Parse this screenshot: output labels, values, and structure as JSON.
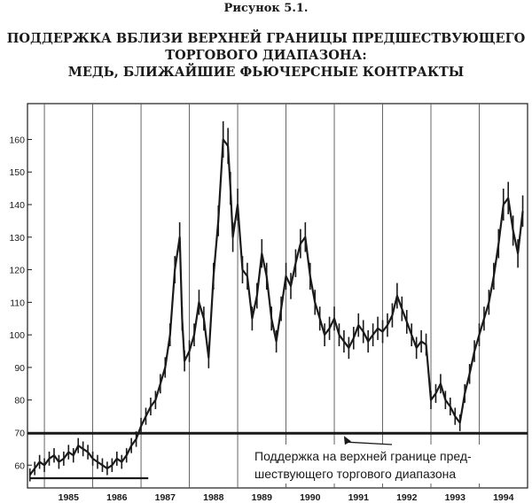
{
  "figure_label": "Рисунок 5.1.",
  "title_lines": [
    "ПОДДЕРЖКА ВБЛИЗИ ВЕРХНЕЙ ГРАНИЦЫ ПРЕДШЕСТВУЮЩЕГО",
    "ТОРГОВОГО ДИАПАЗОНА:",
    "МЕДЬ, БЛИЖАЙШИЕ ФЬЮЧЕРСНЫЕ КОНТРАКТЫ"
  ],
  "colors": {
    "ink": "#1a1a1a",
    "grid": "#555555",
    "background": "#ffffff"
  },
  "chart_data": {
    "type": "line",
    "xlabel": "",
    "ylabel": "",
    "x_range": [
      1984.65,
      1995.0
    ],
    "ylim": [
      53,
      171
    ],
    "y_ticks": [
      60,
      70,
      80,
      90,
      100,
      110,
      120,
      130,
      140,
      150,
      160
    ],
    "x_ticks": [
      {
        "label": "1985",
        "at": 1985.5
      },
      {
        "label": "1986",
        "at": 1986.5
      },
      {
        "label": "1987",
        "at": 1987.5
      },
      {
        "label": "1988",
        "at": 1988.5
      },
      {
        "label": "1989",
        "at": 1989.5
      },
      {
        "label": "1990",
        "at": 1990.5
      },
      {
        "label": "1991",
        "at": 1991.5
      },
      {
        "label": "1992",
        "at": 1992.5
      },
      {
        "label": "1993",
        "at": 1993.5
      },
      {
        "label": "1994",
        "at": 1994.5
      }
    ],
    "grid": "vertical-year-lines",
    "series": [
      {
        "x": [
          1984.7,
          1984.8,
          1984.9,
          1985.0,
          1985.1,
          1985.2,
          1985.3,
          1985.4,
          1985.5,
          1985.6,
          1985.7,
          1985.8,
          1985.9,
          1986.0,
          1986.1,
          1986.2,
          1986.3,
          1986.4,
          1986.5,
          1986.6,
          1986.7,
          1986.8,
          1986.9,
          1987.0,
          1987.1,
          1987.2,
          1987.3,
          1987.4,
          1987.5,
          1987.6,
          1987.7,
          1987.8,
          1987.85,
          1987.9,
          1988.0,
          1988.1,
          1988.2,
          1988.3,
          1988.4,
          1988.5,
          1988.6,
          1988.7,
          1988.8,
          1988.85,
          1988.9,
          1989.0,
          1989.1,
          1989.2,
          1989.3,
          1989.4,
          1989.5,
          1989.6,
          1989.7,
          1989.8,
          1989.9,
          1990.0,
          1990.1,
          1990.2,
          1990.3,
          1990.4,
          1990.5,
          1990.6,
          1990.7,
          1990.8,
          1990.9,
          1991.0,
          1991.1,
          1991.2,
          1991.3,
          1991.4,
          1991.5,
          1991.6,
          1991.7,
          1991.8,
          1991.9,
          1992.0,
          1992.1,
          1992.2,
          1992.3,
          1992.4,
          1992.5,
          1992.6,
          1992.7,
          1992.8,
          1992.9,
          1993.0,
          1993.1,
          1993.2,
          1993.3,
          1993.4,
          1993.5,
          1993.6,
          1993.7,
          1993.8,
          1993.9,
          1994.0,
          1994.1,
          1994.2,
          1994.3,
          1994.4,
          1994.5,
          1994.6,
          1994.7,
          1994.8,
          1994.9
        ],
        "values": [
          57,
          59,
          61,
          60,
          62,
          63,
          61,
          62,
          64,
          63,
          66,
          65,
          64,
          62,
          61,
          60,
          59,
          60,
          62,
          61,
          63,
          66,
          68,
          72,
          75,
          78,
          80,
          85,
          90,
          100,
          120,
          130,
          105,
          92,
          95,
          100,
          110,
          105,
          93,
          118,
          135,
          160,
          158,
          145,
          130,
          140,
          120,
          118,
          105,
          112,
          125,
          118,
          105,
          98,
          108,
          118,
          115,
          122,
          128,
          130,
          118,
          110,
          105,
          100,
          102,
          105,
          100,
          98,
          96,
          99,
          103,
          101,
          98,
          100,
          102,
          101,
          103,
          106,
          112,
          108,
          104,
          100,
          96,
          98,
          97,
          80,
          82,
          85,
          80,
          78,
          75,
          73,
          82,
          88,
          95,
          100,
          105,
          110,
          118,
          128,
          140,
          142,
          132,
          125,
          138
        ]
      }
    ],
    "reference_lines": [
      {
        "y": 69.8,
        "from": 1984.65,
        "to": 1995.0
      },
      {
        "y": 56,
        "from": 1984.7,
        "to": 1987.15
      }
    ],
    "annotation": {
      "lines": [
        "Поддержка на верхней границе пред-",
        "шествующего торгового диапазона"
      ],
      "points_to": {
        "x": 1991.2,
        "y": 69.8
      }
    }
  }
}
